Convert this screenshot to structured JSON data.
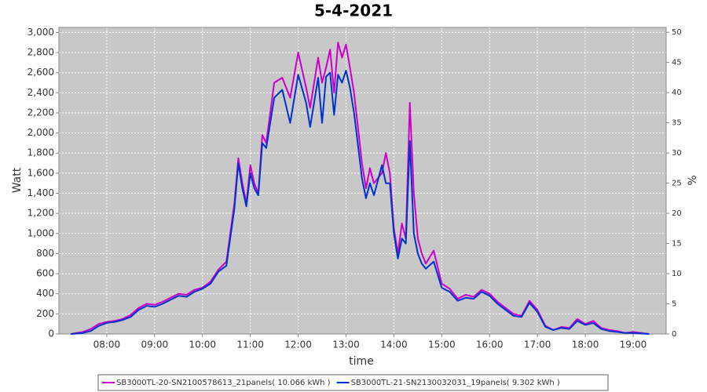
{
  "chart_data": {
    "type": "line",
    "title": "5-4-2021",
    "x_label": "time",
    "y_label": "Watt",
    "y2_label": "%",
    "x": [
      7.25,
      7.5,
      7.667,
      7.833,
      8,
      8.167,
      8.333,
      8.5,
      8.667,
      8.833,
      9,
      9.167,
      9.333,
      9.5,
      9.667,
      9.833,
      10,
      10.167,
      10.333,
      10.5,
      10.667,
      10.75,
      10.833,
      10.917,
      11,
      11.083,
      11.167,
      11.25,
      11.333,
      11.5,
      11.667,
      11.833,
      12,
      12.167,
      12.25,
      12.417,
      12.5,
      12.583,
      12.667,
      12.75,
      12.833,
      12.917,
      13,
      13.083,
      13.167,
      13.333,
      13.417,
      13.5,
      13.583,
      13.75,
      13.833,
      13.917,
      14,
      14.083,
      14.167,
      14.25,
      14.333,
      14.417,
      14.5,
      14.583,
      14.667,
      14.833,
      15,
      15.167,
      15.333,
      15.5,
      15.667,
      15.833,
      16,
      16.167,
      16.333,
      16.5,
      16.667,
      16.833,
      17,
      17.167,
      17.333,
      17.5,
      17.667,
      17.833,
      18,
      18.167,
      18.333,
      18.5,
      18.667,
      18.833,
      19,
      19.167,
      19.333
    ],
    "series": [
      {
        "name": "SB3000TL-20-SN2100578613_21panels( 10.066 kWh )",
        "color": "#cc00cc",
        "values": [
          0,
          20,
          50,
          100,
          120,
          130,
          150,
          190,
          260,
          300,
          290,
          320,
          360,
          400,
          390,
          440,
          460,
          520,
          640,
          720,
          1300,
          1750,
          1500,
          1300,
          1680,
          1500,
          1400,
          1980,
          1900,
          2500,
          2550,
          2350,
          2800,
          2450,
          2250,
          2750,
          2500,
          2650,
          2830,
          2400,
          2900,
          2750,
          2880,
          2650,
          2400,
          1700,
          1450,
          1650,
          1500,
          1600,
          1800,
          1600,
          1050,
          800,
          1100,
          950,
          2300,
          1400,
          950,
          800,
          700,
          830,
          500,
          450,
          350,
          390,
          370,
          440,
          400,
          320,
          260,
          200,
          180,
          330,
          240,
          80,
          40,
          70,
          60,
          150,
          100,
          130,
          60,
          40,
          30,
          10,
          20,
          10,
          0
        ]
      },
      {
        "name": "SB3000TL-21-SN2130032031_19panels( 9.302 kWh )",
        "color": "#0033cc",
        "values": [
          0,
          10,
          30,
          80,
          110,
          120,
          140,
          170,
          240,
          280,
          270,
          300,
          340,
          380,
          370,
          420,
          450,
          500,
          620,
          680,
          1250,
          1700,
          1450,
          1270,
          1600,
          1450,
          1380,
          1900,
          1850,
          2350,
          2430,
          2100,
          2580,
          2300,
          2060,
          2550,
          2100,
          2560,
          2600,
          2180,
          2580,
          2500,
          2620,
          2450,
          2200,
          1550,
          1350,
          1500,
          1380,
          1680,
          1500,
          1500,
          1000,
          750,
          950,
          900,
          1920,
          1000,
          800,
          700,
          650,
          720,
          460,
          420,
          330,
          360,
          350,
          420,
          380,
          300,
          240,
          180,
          170,
          310,
          220,
          70,
          40,
          60,
          50,
          130,
          90,
          110,
          50,
          30,
          20,
          10,
          10,
          5,
          0
        ]
      }
    ],
    "xlim": [
      7,
      19.69
    ],
    "xticks": [
      {
        "value": 8,
        "label": "08:00"
      },
      {
        "value": 9,
        "label": "09:00"
      },
      {
        "value": 10,
        "label": "10:00"
      },
      {
        "value": 11,
        "label": "11:00"
      },
      {
        "value": 12,
        "label": "12:00"
      },
      {
        "value": 13,
        "label": "13:00"
      },
      {
        "value": 14,
        "label": "14:00"
      },
      {
        "value": 15,
        "label": "15:00"
      },
      {
        "value": 16,
        "label": "16:00"
      },
      {
        "value": 17,
        "label": "17:00"
      },
      {
        "value": 18,
        "label": "18:00"
      },
      {
        "value": 19,
        "label": "19:00"
      }
    ],
    "ylim": [
      0,
      3050
    ],
    "yticks": [
      0,
      200,
      400,
      600,
      800,
      {
        "value": 1000,
        "label": "1,000"
      },
      {
        "value": 1200,
        "label": "1,200"
      },
      {
        "value": 1400,
        "label": "1,400"
      },
      {
        "value": 1600,
        "label": "1,600"
      },
      {
        "value": 1800,
        "label": "1,800"
      },
      {
        "value": 2000,
        "label": "2,000"
      },
      {
        "value": 2200,
        "label": "2,200"
      },
      {
        "value": 2400,
        "label": "2,400"
      },
      {
        "value": 2600,
        "label": "2,600"
      },
      {
        "value": 2800,
        "label": "2,800"
      },
      {
        "value": 3000,
        "label": "3,000"
      }
    ],
    "y2lim": [
      0,
      50.8
    ],
    "y2ticks": [
      0,
      5,
      10,
      15,
      20,
      25,
      30,
      35,
      40,
      45,
      50
    ],
    "grid": true,
    "legend": "bottom"
  }
}
